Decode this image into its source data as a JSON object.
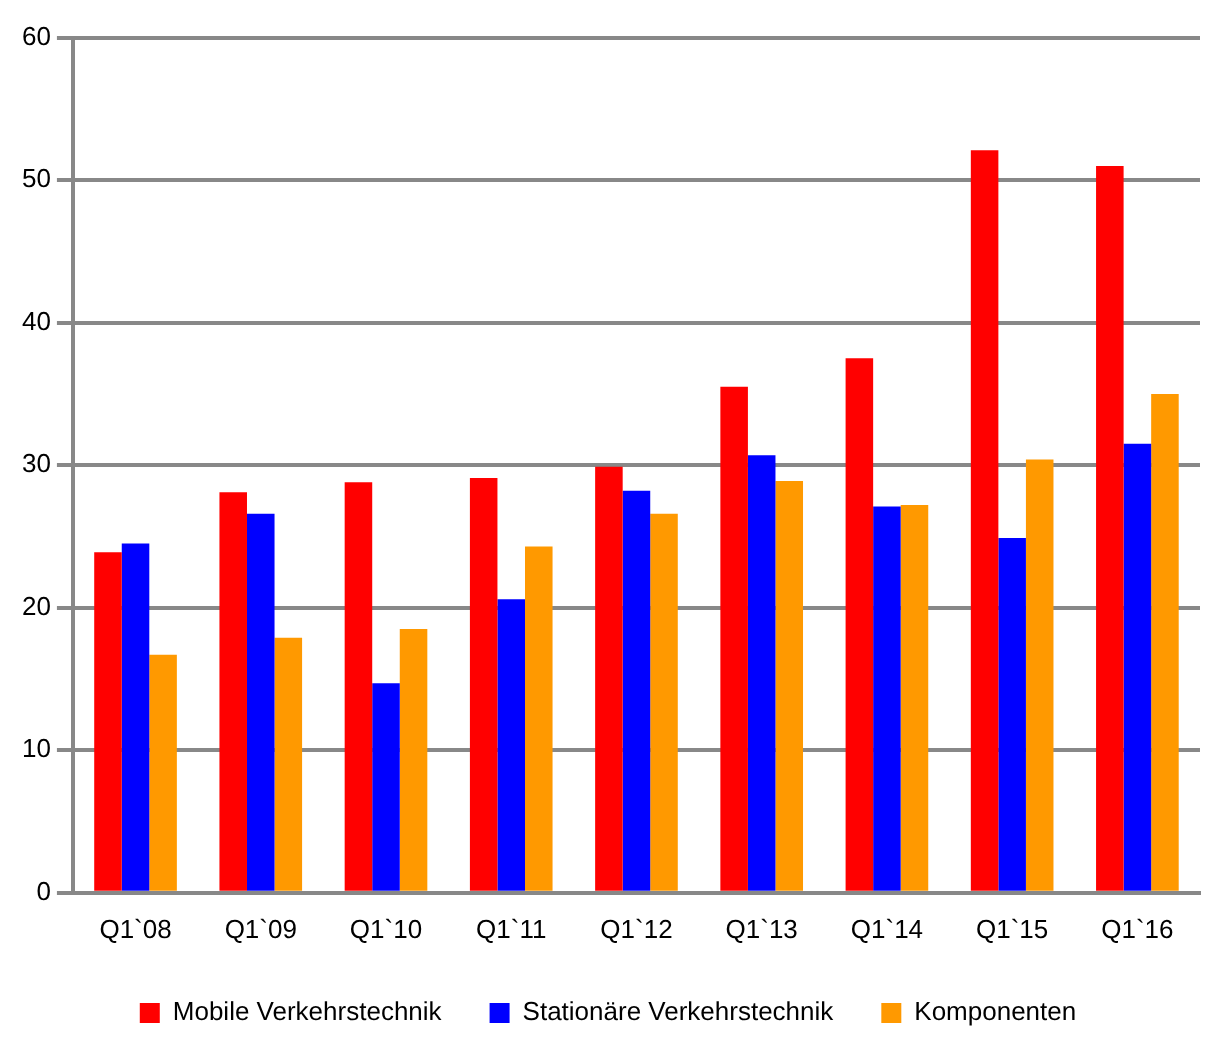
{
  "chart_data": {
    "type": "bar",
    "categories": [
      "Q1`08",
      "Q1`09",
      "Q1`10",
      "Q1`11",
      "Q1`12",
      "Q1`13",
      "Q1`14",
      "Q1`15",
      "Q1`16"
    ],
    "series": [
      {
        "name": "Mobile Verkehrstechnik",
        "color": "#ff0000",
        "values": [
          23.9,
          28.1,
          28.8,
          29.1,
          29.9,
          35.5,
          37.5,
          52.1,
          51.0
        ]
      },
      {
        "name": "Stationäre Verkehrstechnik",
        "color": "#0000ff",
        "values": [
          24.5,
          26.6,
          14.7,
          20.6,
          28.2,
          30.7,
          27.1,
          24.9,
          31.5
        ]
      },
      {
        "name": "Komponenten",
        "color": "#ff9900",
        "values": [
          16.7,
          17.9,
          18.5,
          24.3,
          26.6,
          28.9,
          27.2,
          30.4,
          35.0
        ]
      }
    ],
    "ylim": [
      0,
      60
    ],
    "yticks": [
      0,
      10,
      20,
      30,
      40,
      50,
      60
    ],
    "grid": "y",
    "legend": "bottom"
  }
}
